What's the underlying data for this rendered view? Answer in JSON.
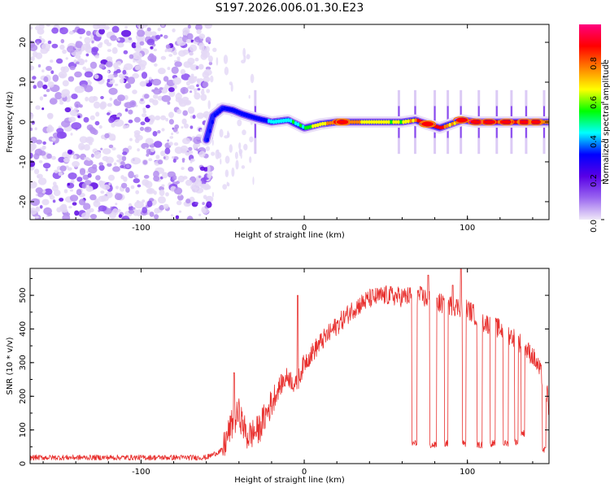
{
  "title": "S197.2026.006.01.30.E23",
  "chart_data": [
    {
      "type": "heatmap",
      "xlabel": "Height of straight line (km)",
      "ylabel": "Frequency (Hz)",
      "xlim": [
        -168,
        150
      ],
      "ylim": [
        -24.5,
        24.5
      ],
      "xticks": [
        -100,
        0,
        100
      ],
      "yticks": [
        -20,
        -10,
        0,
        10,
        20
      ],
      "colorbar": {
        "label": "Normalized spectral amplitude",
        "range": [
          0,
          1
        ],
        "ticks": [
          "0.0",
          "0.2",
          "0.4",
          "0.6",
          "0.8"
        ],
        "tick_values": [
          0,
          0.2,
          0.4,
          0.6,
          0.8
        ],
        "colors": [
          "#efe8f8",
          "#9a66f0",
          "#5800e6",
          "#0000ff",
          "#00ffff",
          "#00ff00",
          "#ffff00",
          "#ff8000",
          "#ff0000",
          "#ff007f"
        ]
      },
      "noise_region_x": [
        -168,
        -60
      ],
      "tone_track": [
        {
          "x": -60,
          "freq": -4.5,
          "amp": 0.25
        },
        {
          "x": -56,
          "freq": 1.5,
          "amp": 0.3
        },
        {
          "x": -50,
          "freq": 3.5,
          "amp": 0.28
        },
        {
          "x": -44,
          "freq": 3.0,
          "amp": 0.3
        },
        {
          "x": -38,
          "freq": 2.0,
          "amp": 0.32
        },
        {
          "x": -30,
          "freq": 1.0,
          "amp": 0.3
        },
        {
          "x": -20,
          "freq": 0.0,
          "amp": 0.38
        },
        {
          "x": -10,
          "freq": 0.5,
          "amp": 0.45
        },
        {
          "x": 0,
          "freq": -1.5,
          "amp": 0.55
        },
        {
          "x": 10,
          "freq": -0.5,
          "amp": 0.7
        },
        {
          "x": 20,
          "freq": 0.0,
          "amp": 0.9
        },
        {
          "x": 30,
          "freq": 0.0,
          "amp": 0.75
        },
        {
          "x": 40,
          "freq": 0.0,
          "amp": 0.7
        },
        {
          "x": 50,
          "freq": 0.0,
          "amp": 0.65
        },
        {
          "x": 60,
          "freq": 0.0,
          "amp": 0.65
        },
        {
          "x": 68,
          "freq": 0.5,
          "amp": 0.8
        },
        {
          "x": 75,
          "freq": -0.5,
          "amp": 0.95
        },
        {
          "x": 83,
          "freq": -1.5,
          "amp": 0.85
        },
        {
          "x": 90,
          "freq": -0.5,
          "amp": 0.7
        },
        {
          "x": 97,
          "freq": 0.5,
          "amp": 0.9
        },
        {
          "x": 105,
          "freq": 0.0,
          "amp": 0.95
        },
        {
          "x": 115,
          "freq": 0.0,
          "amp": 0.85
        },
        {
          "x": 125,
          "freq": 0.0,
          "amp": 0.8
        },
        {
          "x": 135,
          "freq": 0.0,
          "amp": 0.85
        },
        {
          "x": 145,
          "freq": 0.0,
          "amp": 0.75
        },
        {
          "x": 150,
          "freq": 0.0,
          "amp": 0.7
        }
      ],
      "spikes_x": [
        -30,
        58,
        68,
        80,
        88,
        96,
        107,
        118,
        127,
        136,
        147
      ]
    },
    {
      "type": "line",
      "xlabel": "Height of straight line (km)",
      "ylabel": "SNR (10 * v/v)",
      "xlim": [
        -168,
        150
      ],
      "ylim": [
        0,
        580
      ],
      "xticks": [
        -100,
        0,
        100
      ],
      "yticks": [
        0,
        100,
        200,
        300,
        400,
        500
      ],
      "series": [
        {
          "name": "SNR",
          "color": "#e8302e",
          "baseline": [
            [
              -168,
              18
            ],
            [
              -60,
              18
            ],
            [
              -50,
              40
            ],
            [
              -45,
              110
            ],
            [
              -40,
              150
            ],
            [
              -35,
              80
            ],
            [
              -28,
              100
            ],
            [
              -22,
              160
            ],
            [
              -15,
              230
            ],
            [
              -10,
              260
            ],
            [
              -5,
              230
            ],
            [
              0,
              300
            ],
            [
              10,
              360
            ],
            [
              20,
              410
            ],
            [
              30,
              460
            ],
            [
              40,
              490
            ],
            [
              50,
              500
            ],
            [
              60,
              495
            ],
            [
              70,
              500
            ],
            [
              80,
              480
            ],
            [
              90,
              470
            ],
            [
              100,
              460
            ],
            [
              110,
              420
            ],
            [
              120,
              400
            ],
            [
              130,
              370
            ],
            [
              140,
              320
            ],
            [
              145,
              270
            ],
            [
              150,
              180
            ]
          ],
          "dropouts": [
            [
              66,
              69,
              60
            ],
            [
              77,
              81,
              55
            ],
            [
              86,
              88,
              60
            ],
            [
              97,
              99,
              60
            ],
            [
              106,
              109,
              55
            ],
            [
              114,
              117,
              60
            ],
            [
              122,
              125,
              60
            ],
            [
              129,
              131,
              65
            ],
            [
              133,
              135,
              90
            ],
            [
              146,
              148,
              40
            ]
          ],
          "spikes": [
            [
              -4,
              500
            ],
            [
              -43,
              270
            ],
            [
              76,
              560
            ],
            [
              96,
              580
            ],
            [
              91,
              530
            ]
          ]
        }
      ]
    }
  ]
}
